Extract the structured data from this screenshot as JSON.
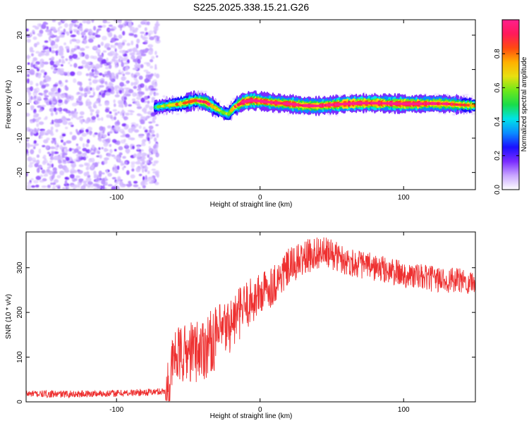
{
  "page_title": "S225.2025.338.15.21.G26",
  "chart_data": [
    {
      "type": "heatmap",
      "title": "S225.2025.338.15.21.G26",
      "xlabel": "Height of straight line (km)",
      "ylabel": "Frequency (Hz)",
      "xlim": [
        -163,
        150
      ],
      "ylim": [
        -25,
        24.5
      ],
      "xticks": [
        -100,
        0,
        100
      ],
      "yticks": [
        -20,
        -10,
        0,
        10,
        20
      ],
      "xtick_labels": [
        "-100",
        "0",
        "100"
      ],
      "ytick_labels": [
        "-20",
        "-10",
        "0",
        "10",
        "20"
      ],
      "noise_region_x": [
        -163,
        -73
      ],
      "signal_track": {
        "x": [
          -73,
          -65,
          -55,
          -45,
          -38,
          -32,
          -26,
          -22,
          -18,
          -12,
          -6,
          0,
          10,
          20,
          30,
          40,
          50,
          60,
          70,
          80,
          90,
          100,
          110,
          120,
          130,
          140,
          150
        ],
        "freq": [
          -1,
          -0.5,
          0,
          1,
          0.5,
          -1,
          -2.5,
          -3,
          -1,
          0.5,
          1,
          0.8,
          0.3,
          0,
          -0.5,
          -0.6,
          -0.3,
          0,
          0.2,
          0.2,
          0.1,
          0,
          0,
          0.1,
          0,
          -0.3,
          -0.5
        ],
        "amplitude": [
          0.3,
          0.5,
          0.6,
          0.7,
          0.8,
          0.6,
          0.45,
          0.5,
          0.6,
          0.9,
          0.95,
          0.9,
          0.85,
          0.9,
          0.8,
          0.85,
          0.9,
          0.95,
          0.95,
          0.9,
          0.9,
          0.95,
          0.9,
          0.85,
          0.8,
          0.75,
          0.6
        ]
      },
      "colorbar": {
        "label": "Normalized spectral amplitude",
        "range": [
          0,
          1
        ],
        "ticks": [
          0.0,
          0.2,
          0.4,
          0.6,
          0.8
        ],
        "tick_labels": [
          "0.0",
          "0.2",
          "0.4",
          "0.6",
          "0.8"
        ],
        "colormap": [
          "#ffffff",
          "#c9a6ff",
          "#7a2bff",
          "#1a10ff",
          "#0a8cff",
          "#00e3e8",
          "#1adc4a",
          "#6ee81a",
          "#e8e010",
          "#ffb000",
          "#ff4a10",
          "#ff1a5a",
          "#ff1f8c"
        ]
      }
    },
    {
      "type": "line",
      "xlabel": "Height of straight line (km)",
      "ylabel": "SNR (10 * v/v)",
      "xlim": [
        -163,
        150
      ],
      "ylim": [
        0,
        380
      ],
      "xticks": [
        -100,
        0,
        100
      ],
      "yticks": [
        0,
        100,
        200,
        300
      ],
      "xtick_labels": [
        "-100",
        "0",
        "100"
      ],
      "ytick_labels": [
        "0",
        "100",
        "200",
        "300"
      ],
      "series": [
        {
          "name": "SNR",
          "color": "#ee3030",
          "trend_x": [
            -163,
            -140,
            -100,
            -75,
            -65,
            -60,
            -50,
            -40,
            -30,
            -20,
            -10,
            0,
            10,
            20,
            30,
            40,
            50,
            60,
            80,
            100,
            120,
            140,
            150
          ],
          "trend_y": [
            18,
            17,
            19,
            22,
            24,
            100,
            110,
            120,
            145,
            175,
            215,
            240,
            265,
            300,
            320,
            335,
            330,
            315,
            300,
            285,
            275,
            270,
            268
          ],
          "noise_x": [
            -163,
            -66,
            -65,
            -40,
            -30,
            0,
            30,
            60,
            150
          ],
          "noise_amp": [
            8,
            8,
            60,
            75,
            70,
            50,
            40,
            32,
            28
          ]
        }
      ]
    }
  ]
}
